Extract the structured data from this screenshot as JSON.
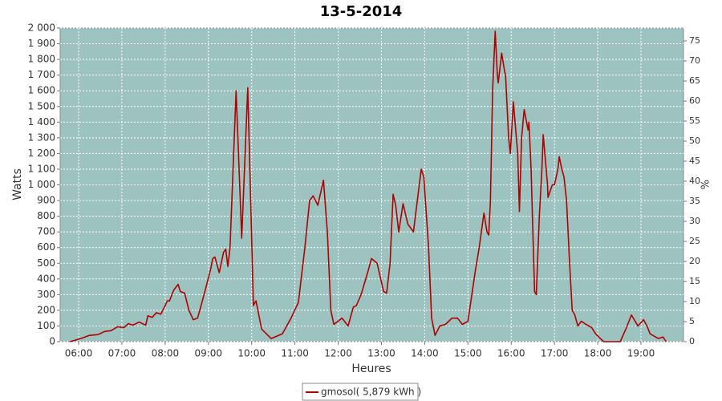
{
  "chart_data": {
    "type": "line",
    "title": "13-5-2014",
    "ylabel": "Watts",
    "y2label": "%",
    "xlabel": "Heures",
    "grid": true,
    "legend": "bottom",
    "xlim": [
      5.573,
      19.983
    ],
    "xticks": [
      {
        "value": 6,
        "label": "06:00"
      },
      {
        "value": 7,
        "label": "07:00"
      },
      {
        "value": 8,
        "label": "08:00"
      },
      {
        "value": 9,
        "label": "09:00"
      },
      {
        "value": 10,
        "label": "10:00"
      },
      {
        "value": 11,
        "label": "11:00"
      },
      {
        "value": 12,
        "label": "12:00"
      },
      {
        "value": 13,
        "label": "13:00"
      },
      {
        "value": 14,
        "label": "14:00"
      },
      {
        "value": 15,
        "label": "15:00"
      },
      {
        "value": 16,
        "label": "16:00"
      },
      {
        "value": 17,
        "label": "17:00"
      },
      {
        "value": 18,
        "label": "18:00"
      },
      {
        "value": 19,
        "label": "19:00"
      }
    ],
    "ylim": [
      0,
      2000
    ],
    "yticks": [
      0,
      100,
      200,
      300,
      400,
      500,
      600,
      700,
      800,
      900,
      {
        "value": 1000,
        "label": "1 000"
      },
      {
        "value": 1100,
        "label": "1 100"
      },
      {
        "value": 1200,
        "label": "1 200"
      },
      {
        "value": 1300,
        "label": "1 300"
      },
      {
        "value": 1400,
        "label": "1 400"
      },
      {
        "value": 1500,
        "label": "1 500"
      },
      {
        "value": 1600,
        "label": "1 600"
      },
      {
        "value": 1700,
        "label": "1 700"
      },
      {
        "value": 1800,
        "label": "1 800"
      },
      {
        "value": 1900,
        "label": "1 900"
      },
      {
        "value": 2000,
        "label": "2 000"
      }
    ],
    "y2lim": [
      0,
      78.2
    ],
    "y2ticks": [
      0,
      5,
      10,
      15,
      20,
      25,
      30,
      35,
      40,
      45,
      50,
      55,
      60,
      65,
      70,
      75
    ],
    "x": [
      5.8,
      6.05,
      6.25,
      6.45,
      6.6,
      6.75,
      6.9,
      7.05,
      7.15,
      7.25,
      7.4,
      7.55,
      7.6,
      7.7,
      7.8,
      7.9,
      8.0,
      8.05,
      8.1,
      8.2,
      8.3,
      8.35,
      8.45,
      8.55,
      8.65,
      8.75,
      8.9,
      9.05,
      9.1,
      9.15,
      9.25,
      9.35,
      9.4,
      9.45,
      9.5,
      9.64,
      9.77,
      9.91,
      10.04,
      10.1,
      10.23,
      10.45,
      10.71,
      10.91,
      11.08,
      11.23,
      11.34,
      11.42,
      11.53,
      11.66,
      11.75,
      11.83,
      11.9,
      12.09,
      12.23,
      12.35,
      12.42,
      12.53,
      12.68,
      12.77,
      12.9,
      13.05,
      13.12,
      13.2,
      13.27,
      13.33,
      13.4,
      13.5,
      13.61,
      13.74,
      13.83,
      13.92,
      13.98,
      14.09,
      14.16,
      14.24,
      14.35,
      14.48,
      14.63,
      14.76,
      14.87,
      15.0,
      15.09,
      15.17,
      15.26,
      15.37,
      15.44,
      15.48,
      15.52,
      15.57,
      15.63,
      15.68,
      15.7,
      15.78,
      15.85,
      15.87,
      15.94,
      15.98,
      16.05,
      16.15,
      16.19,
      16.24,
      16.3,
      16.39,
      16.41,
      16.46,
      16.54,
      16.58,
      16.65,
      16.71,
      16.74,
      16.84,
      16.85,
      16.95,
      17.0,
      17.08,
      17.11,
      17.17,
      17.22,
      17.28,
      17.35,
      17.41,
      17.47,
      17.54,
      17.62,
      17.73,
      17.86,
      17.95,
      18.06,
      18.14,
      18.52,
      18.65,
      18.78,
      18.93,
      19.06,
      19.14,
      19.21,
      19.4,
      19.51,
      19.58
    ],
    "series": [
      {
        "name": "gmosol( 5,879 kWh )",
        "color": "#b00000",
        "values": [
          0,
          20,
          40,
          45,
          65,
          70,
          95,
          90,
          115,
          105,
          125,
          105,
          165,
          155,
          185,
          175,
          230,
          260,
          260,
          330,
          365,
          320,
          310,
          200,
          140,
          150,
          300,
          460,
          530,
          540,
          440,
          570,
          590,
          480,
          600,
          1600,
          660,
          1620,
          230,
          260,
          80,
          20,
          50,
          150,
          250,
          600,
          900,
          930,
          870,
          1030,
          700,
          200,
          110,
          150,
          100,
          220,
          230,
          300,
          440,
          530,
          500,
          320,
          310,
          500,
          940,
          870,
          700,
          880,
          750,
          700,
          900,
          1100,
          1050,
          600,
          150,
          40,
          100,
          110,
          150,
          150,
          110,
          130,
          300,
          450,
          600,
          820,
          700,
          680,
          900,
          1600,
          1980,
          1700,
          1650,
          1840,
          1720,
          1700,
          1300,
          1200,
          1530,
          1200,
          830,
          1300,
          1480,
          1350,
          1400,
          1100,
          320,
          300,
          800,
          1100,
          1320,
          1000,
          920,
          1000,
          1000,
          1100,
          1180,
          1100,
          1050,
          900,
          500,
          200,
          170,
          100,
          130,
          110,
          90,
          50,
          20,
          0,
          0,
          80,
          170,
          100,
          140,
          100,
          50,
          20,
          30,
          0
        ]
      }
    ]
  }
}
